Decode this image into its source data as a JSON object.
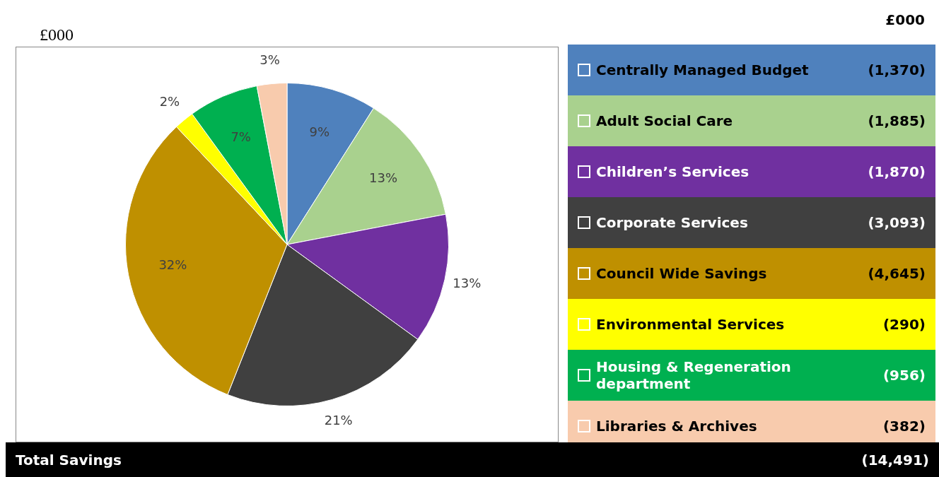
{
  "chart_data": {
    "type": "pie",
    "title": "£000",
    "categories": [
      "Centrally Managed Budget",
      "Adult Social Care",
      "Children’s Services",
      "Corporate Services",
      "Council Wide Savings",
      "Environmental Services",
      "Housing & Regeneration department",
      "Libraries & Archives"
    ],
    "values": [
      9,
      13,
      13,
      21,
      32,
      2,
      7,
      3
    ],
    "colors": [
      "#4f81bd",
      "#a9d18e",
      "#7030a0",
      "#404040",
      "#bf9000",
      "#ffff00",
      "#00b050",
      "#f8cbad"
    ],
    "value_labels": [
      "9%",
      "13%",
      "13%",
      "21%",
      "32%",
      "2%",
      "7%",
      "3%"
    ],
    "legend": "right",
    "totals": [
      "(14,491)"
    ],
    "annotations": [
      "£000",
      "Total Savings",
      {
        "text": "(1,370)",
        "x": "Centrally Managed Budget"
      },
      {
        "text": "(1,885)",
        "x": "Adult Social Care"
      },
      {
        "text": "(1,870)",
        "x": "Children’s Services"
      },
      {
        "text": "(3,093)",
        "x": "Corporate Services"
      },
      {
        "text": "(4,645)",
        "x": "Council Wide Savings"
      },
      {
        "text": "(290)",
        "x": "Environmental Services"
      },
      {
        "text": "(956)",
        "x": "Housing & Regeneration department"
      },
      {
        "text": "(382)",
        "x": "Libraries & Archives"
      }
    ]
  }
}
